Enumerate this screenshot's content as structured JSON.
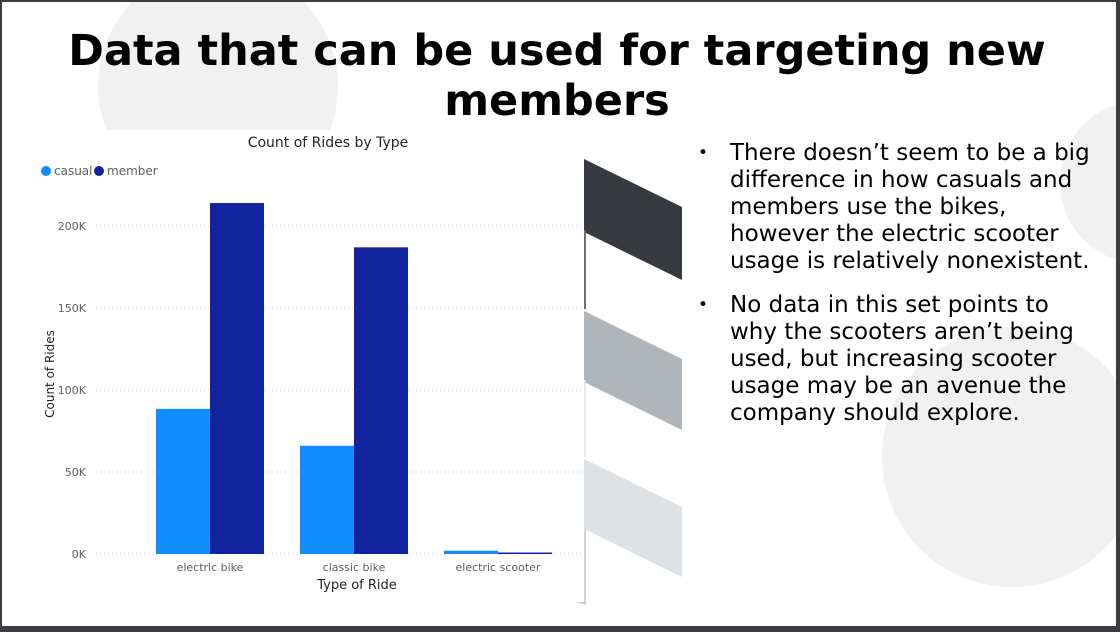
{
  "slide": {
    "title": "Data that can be used for targeting new members",
    "bullets": [
      "There doesn’t seem to be a big difference in how casuals and members use the bikes, however the electric scooter usage is relatively nonexistent.",
      "No data in this set points to why the scooters aren’t being used, but increasing scooter usage may be an avenue the company should explore."
    ],
    "colors": {
      "frame": "#3b3d40",
      "shape_dark": "#363a3f",
      "shape_mid": "#b0b5ba",
      "shape_light": "#dfe2e5",
      "circle": "#f1f1f1"
    }
  },
  "chart_data": {
    "type": "bar",
    "title": "Count of Rides by Type",
    "xlabel": "Type of Ride",
    "ylabel": "Count of Rides",
    "categories": [
      "electric bike",
      "classic bike",
      "electric scooter"
    ],
    "series": [
      {
        "name": "casual",
        "color": "#118dff",
        "values": [
          88500,
          66000,
          2000
        ]
      },
      {
        "name": "member",
        "color": "#12239e",
        "values": [
          214000,
          187000,
          900
        ]
      }
    ],
    "ylim": [
      0,
      200000
    ],
    "yticks": [
      0,
      50000,
      100000,
      150000,
      200000
    ],
    "ytick_labels": [
      "0K",
      "50K",
      "100K",
      "150K",
      "200K"
    ],
    "grid": true,
    "legend": "top-left"
  }
}
